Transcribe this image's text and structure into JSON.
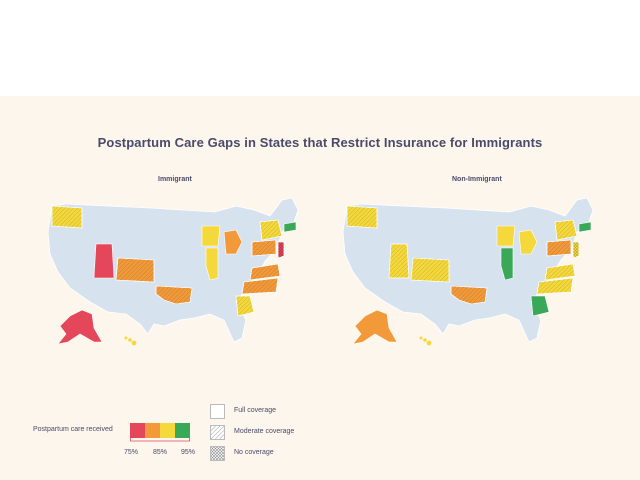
{
  "title": "Postpartum Care Gaps in States that Restrict Insurance for Immigrants",
  "maps": [
    {
      "subtitle": "Immigrant"
    },
    {
      "subtitle": "Non-Immigrant"
    }
  ],
  "legend": {
    "care_label": "Postpartum care received",
    "scale_colors": [
      "#e5475a",
      "#f29a3a",
      "#f5d93c",
      "#3aa957"
    ],
    "ticks": [
      "75%",
      "85%",
      "95%"
    ],
    "coverage": [
      {
        "label": "Full coverage",
        "pattern": "none"
      },
      {
        "label": "Moderate coverage",
        "pattern": "hatch"
      },
      {
        "label": "No coverage",
        "pattern": "cross"
      }
    ]
  },
  "colors": {
    "background": "#fdf6ec",
    "no_data": "#d6e2ee",
    "border": "#ffffff",
    "text": "#4a4a6a"
  }
}
